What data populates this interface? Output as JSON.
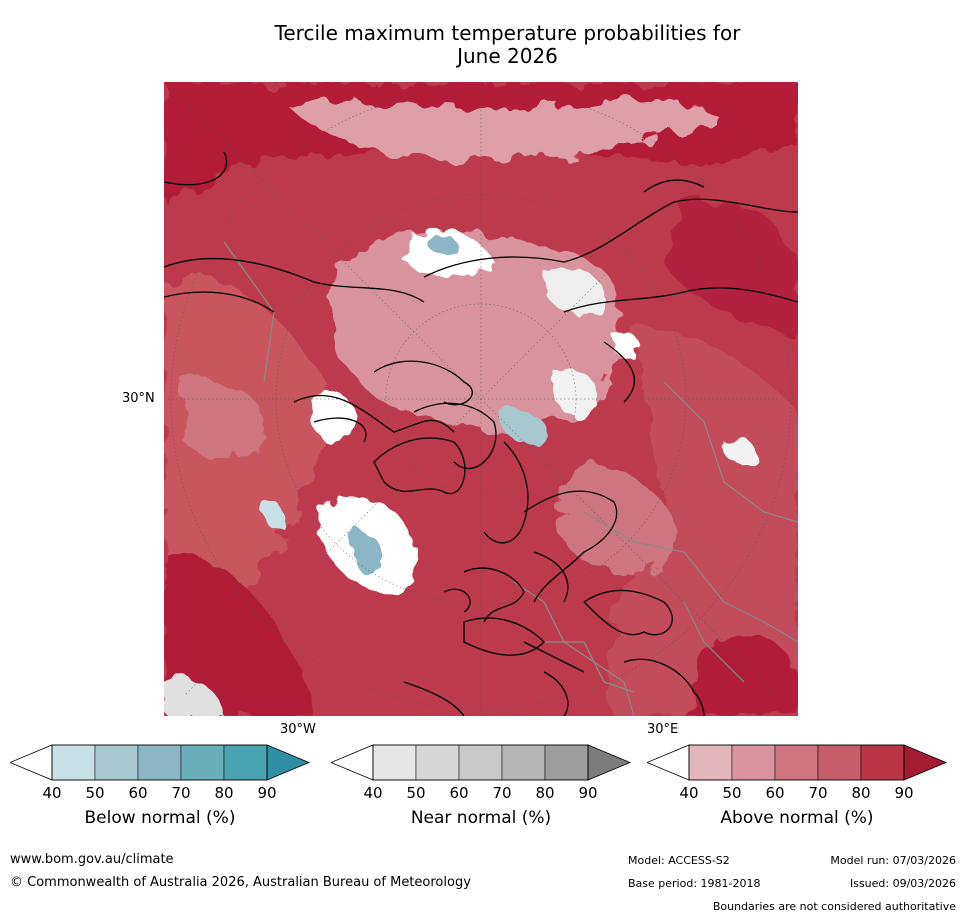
{
  "title_line1": "Tercile maximum temperature probabilities for",
  "title_line2": "June 2026",
  "map": {
    "lat_label": "30°N",
    "lon_left_label": "30°W",
    "lon_right_label": "30°E"
  },
  "legends": {
    "below": {
      "title": "Below normal (%)",
      "ticks": [
        "40",
        "50",
        "60",
        "70",
        "80",
        "90"
      ],
      "colors": [
        "#ffffff",
        "#c9e0e6",
        "#a7c8cf",
        "#8ab7c3",
        "#6aaeb9",
        "#4aa2b2",
        "#2e8ea3"
      ]
    },
    "near": {
      "title": "Near normal (%)",
      "ticks": [
        "40",
        "50",
        "60",
        "70",
        "80",
        "90"
      ],
      "colors": [
        "#ffffff",
        "#e6e6e6",
        "#d7d7d7",
        "#c9c9c9",
        "#b5b5b5",
        "#9e9e9e",
        "#7c7c7c"
      ]
    },
    "above": {
      "title": "Above normal (%)",
      "ticks": [
        "40",
        "50",
        "60",
        "70",
        "80",
        "90"
      ],
      "colors": [
        "#ffffff",
        "#e3b6bc",
        "#d9949f",
        "#cd7480",
        "#c55d6b",
        "#bb3549",
        "#a41b34"
      ]
    }
  },
  "footer": {
    "url": "www.bom.gov.au/climate",
    "copyright": "© Commonwealth of Australia 2026, Australian Bureau of Meteorology",
    "model": "Model: ACCESS-S2",
    "model_run": "Model run: 07/03/2026",
    "base_period": "Base period: 1981-2018",
    "issued": "Issued: 09/03/2026",
    "disclaimer": "Boundaries are not considered authoritative"
  }
}
